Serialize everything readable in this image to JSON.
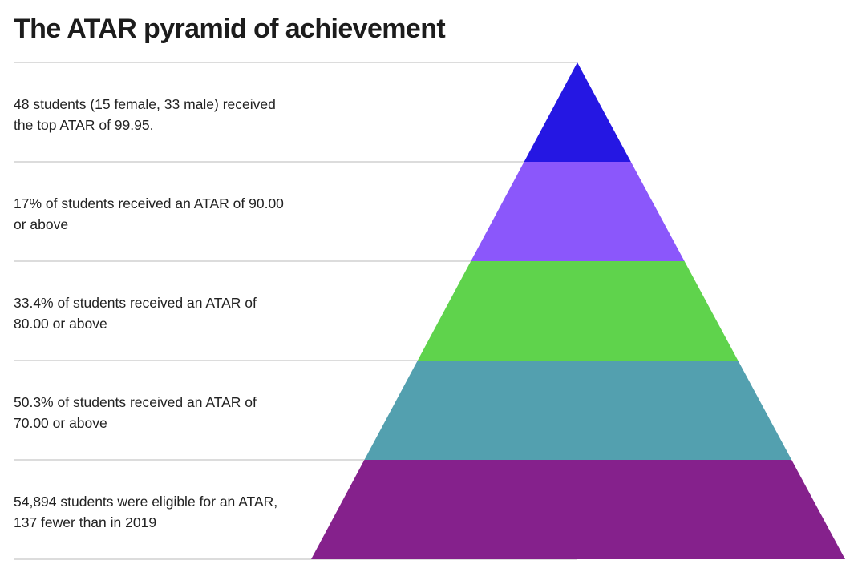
{
  "title": "The ATAR pyramid of achievement",
  "tiers": [
    {
      "text": "48 students (15 female, 33 male) received the top ATAR of 99.95.",
      "color": "#2517e3"
    },
    {
      "text": "17% of students received an ATAR of 90.00 or above",
      "color": "#8b57fb"
    },
    {
      "text": "33.4% of students received an ATAR of 80.00 or above",
      "color": "#5fd34c"
    },
    {
      "text": "50.3% of students received an ATAR of 70.00 or above",
      "color": "#53a0af"
    },
    {
      "text": "54,894 students were eligible for an ATAR, 137 fewer than in 2019",
      "color": "#85218c"
    }
  ],
  "divider_color": "#c8c8c8"
}
